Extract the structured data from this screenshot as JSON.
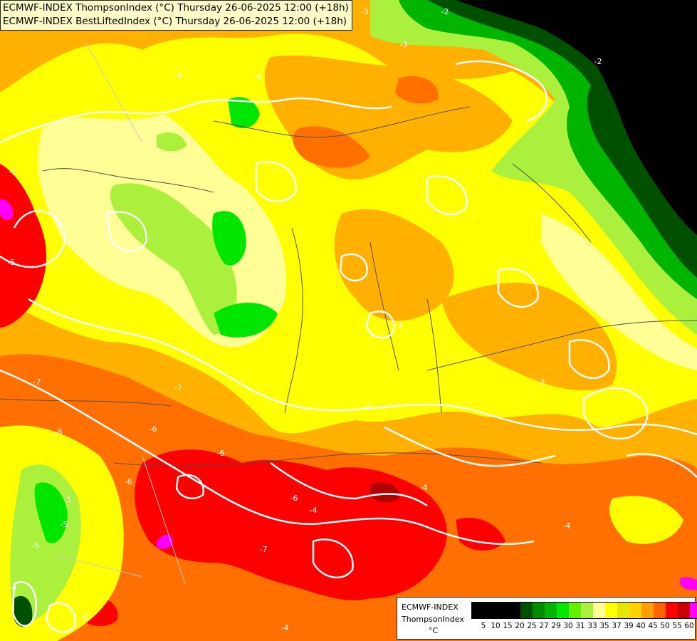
{
  "titles": [
    "ECMWF-INDEX ThompsonIndex (°C) Thursday 26-06-2025 12:00 (+18h)",
    "ECMWF-INDEX BestLiftedIndex (°C) Thursday 26-06-2025 12:00 (+18h)"
  ],
  "legend": {
    "model": "ECMWF-INDEX",
    "variable": "ThompsonIndex",
    "unit": "°C",
    "colors": [
      "#000000",
      "#000000",
      "#000000",
      "#000000",
      "#005000",
      "#008c00",
      "#00b400",
      "#00e600",
      "#64f000",
      "#aaf03c",
      "#ffff96",
      "#ffff00",
      "#e6e600",
      "#ffd200",
      "#ffa000",
      "#ff6400",
      "#ff0000",
      "#c80000",
      "#ff00ff",
      "#b400ff",
      "#7800ff",
      "#2800ff",
      "#0000ff"
    ],
    "ticks": [
      "5",
      "10",
      "15",
      "20",
      "25",
      "27",
      "29",
      "30",
      "31",
      "33",
      "35",
      "37",
      "39",
      "40",
      "45",
      "50",
      "55",
      "60"
    ]
  },
  "contour_labels": [
    "-3",
    "-2",
    "-3",
    "-5",
    "-5",
    "-3",
    "-4",
    "-4",
    "-5",
    "-7",
    "-6",
    "-7",
    "-8",
    "-6",
    "-6",
    "-7",
    "-4",
    "-4",
    "-4",
    "-5",
    "-4",
    "-6",
    "-5",
    "-6",
    "-3",
    "-2",
    "-3",
    "-4"
  ],
  "palette": {
    "black": "#000000",
    "dark_green": "#005000",
    "green": "#00b400",
    "bright_green": "#00e600",
    "lime": "#aaf03c",
    "light_yellow": "#ffff96",
    "yellow": "#ffff00",
    "orange": "#ffb000",
    "dark_orange": "#ff7000",
    "red": "#ff0000",
    "dark_red": "#b00000",
    "magenta": "#ff00ff",
    "contour": "#ffffff",
    "border": "#505050"
  }
}
